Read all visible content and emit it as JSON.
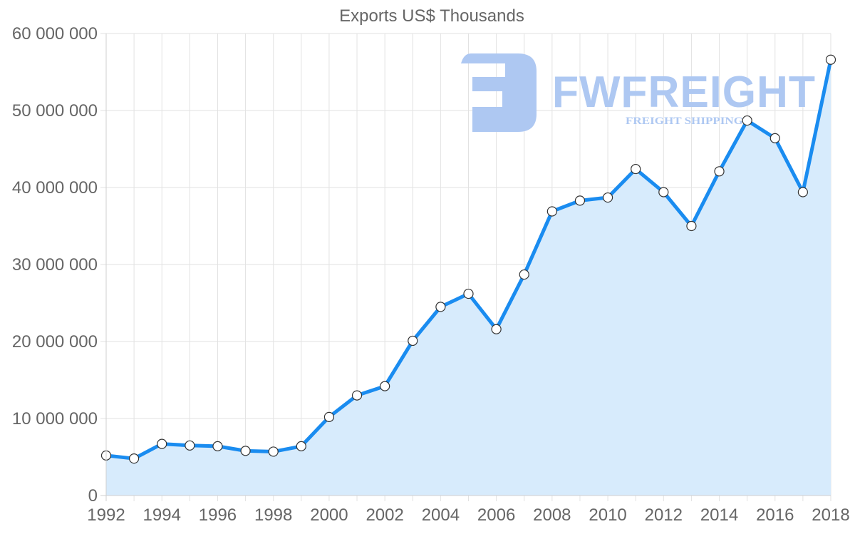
{
  "chart_data": {
    "type": "line",
    "title": "Exports US$ Thousands",
    "xlabel": "",
    "ylabel": "",
    "x": [
      1992,
      1993,
      1994,
      1995,
      1996,
      1997,
      1998,
      1999,
      2000,
      2001,
      2002,
      2003,
      2004,
      2005,
      2006,
      2007,
      2008,
      2009,
      2010,
      2011,
      2012,
      2013,
      2014,
      2015,
      2016,
      2017,
      2018
    ],
    "series": [
      {
        "name": "Exports US$ Thousands",
        "values": [
          5200000,
          4800000,
          6700000,
          6500000,
          6400000,
          5800000,
          5700000,
          6400000,
          10200000,
          13000000,
          14200000,
          20100000,
          24500000,
          26200000,
          21600000,
          28700000,
          36900000,
          38300000,
          38700000,
          42400000,
          39400000,
          35000000,
          42100000,
          48700000,
          46400000,
          39400000,
          56600000
        ]
      }
    ],
    "ylim": [
      0,
      60000000
    ],
    "xlim": [
      1992,
      2018
    ],
    "y_ticks": [
      "0",
      "10 000 000",
      "20 000 000",
      "30 000 000",
      "40 000 000",
      "50 000 000",
      "60 000 000"
    ],
    "y_tick_values": [
      0,
      10000000,
      20000000,
      30000000,
      40000000,
      50000000,
      60000000
    ],
    "x_ticks": [
      "1992",
      "1994",
      "1996",
      "1998",
      "2000",
      "2002",
      "2004",
      "2006",
      "2008",
      "2010",
      "2012",
      "2014",
      "2016",
      "2018"
    ],
    "grid": true,
    "legend": "none",
    "filled_area": true,
    "colors": {
      "line": "#1a8cf0",
      "fill": "#d7ebfc",
      "point_fill": "#ffffff",
      "point_stroke": "#333333"
    }
  },
  "watermark": {
    "brand": "FWFREIGHT",
    "tagline": "FREIGHT SHIPPING",
    "color": "#aec8f2"
  }
}
